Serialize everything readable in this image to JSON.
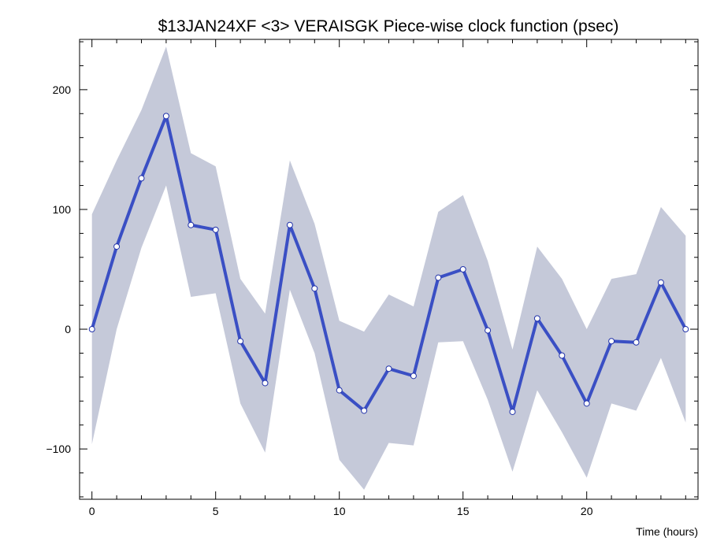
{
  "chart_data": {
    "type": "line",
    "title": "$13JAN24XF <3>  VERAISGK  Piece-wise clock function (psec)",
    "xlabel": "Time (hours)",
    "ylabel": "",
    "xlim": [
      -0.5,
      24.5
    ],
    "ylim": [
      -142,
      242
    ],
    "x_ticks": [
      0,
      5,
      10,
      15,
      20
    ],
    "y_ticks": [
      -100,
      0,
      100,
      200
    ],
    "grid": false,
    "legend": "none",
    "colors": {
      "line": "#3a4fc4",
      "band": "#c5c9d9",
      "marker_fill": "#ffffff",
      "marker_edge": "#2233aa"
    },
    "x": [
      0,
      1,
      2,
      3,
      4,
      5,
      6,
      7,
      8,
      9,
      10,
      11,
      12,
      13,
      14,
      15,
      16,
      17,
      18,
      19,
      20,
      21,
      22,
      23,
      24
    ],
    "series": [
      {
        "values": [
          0,
          69,
          126,
          178,
          87,
          83,
          -10,
          -45,
          87,
          34,
          -51,
          -68,
          -33,
          -39,
          43,
          50,
          -1,
          -69,
          9,
          -22,
          -62,
          -10,
          -11,
          39,
          0
        ],
        "upper": [
          96,
          141,
          183,
          236,
          147,
          136,
          42,
          13,
          141,
          88,
          7,
          -2,
          29,
          19,
          98,
          112,
          57,
          -17,
          69,
          42,
          0,
          42,
          46,
          102,
          78
        ],
        "lower": [
          -96,
          0,
          68,
          120,
          27,
          30,
          -62,
          -103,
          33,
          -20,
          -109,
          -134,
          -95,
          -97,
          -11,
          -10,
          -59,
          -119,
          -51,
          -86,
          -124,
          -62,
          -68,
          -24,
          -78
        ]
      }
    ]
  }
}
